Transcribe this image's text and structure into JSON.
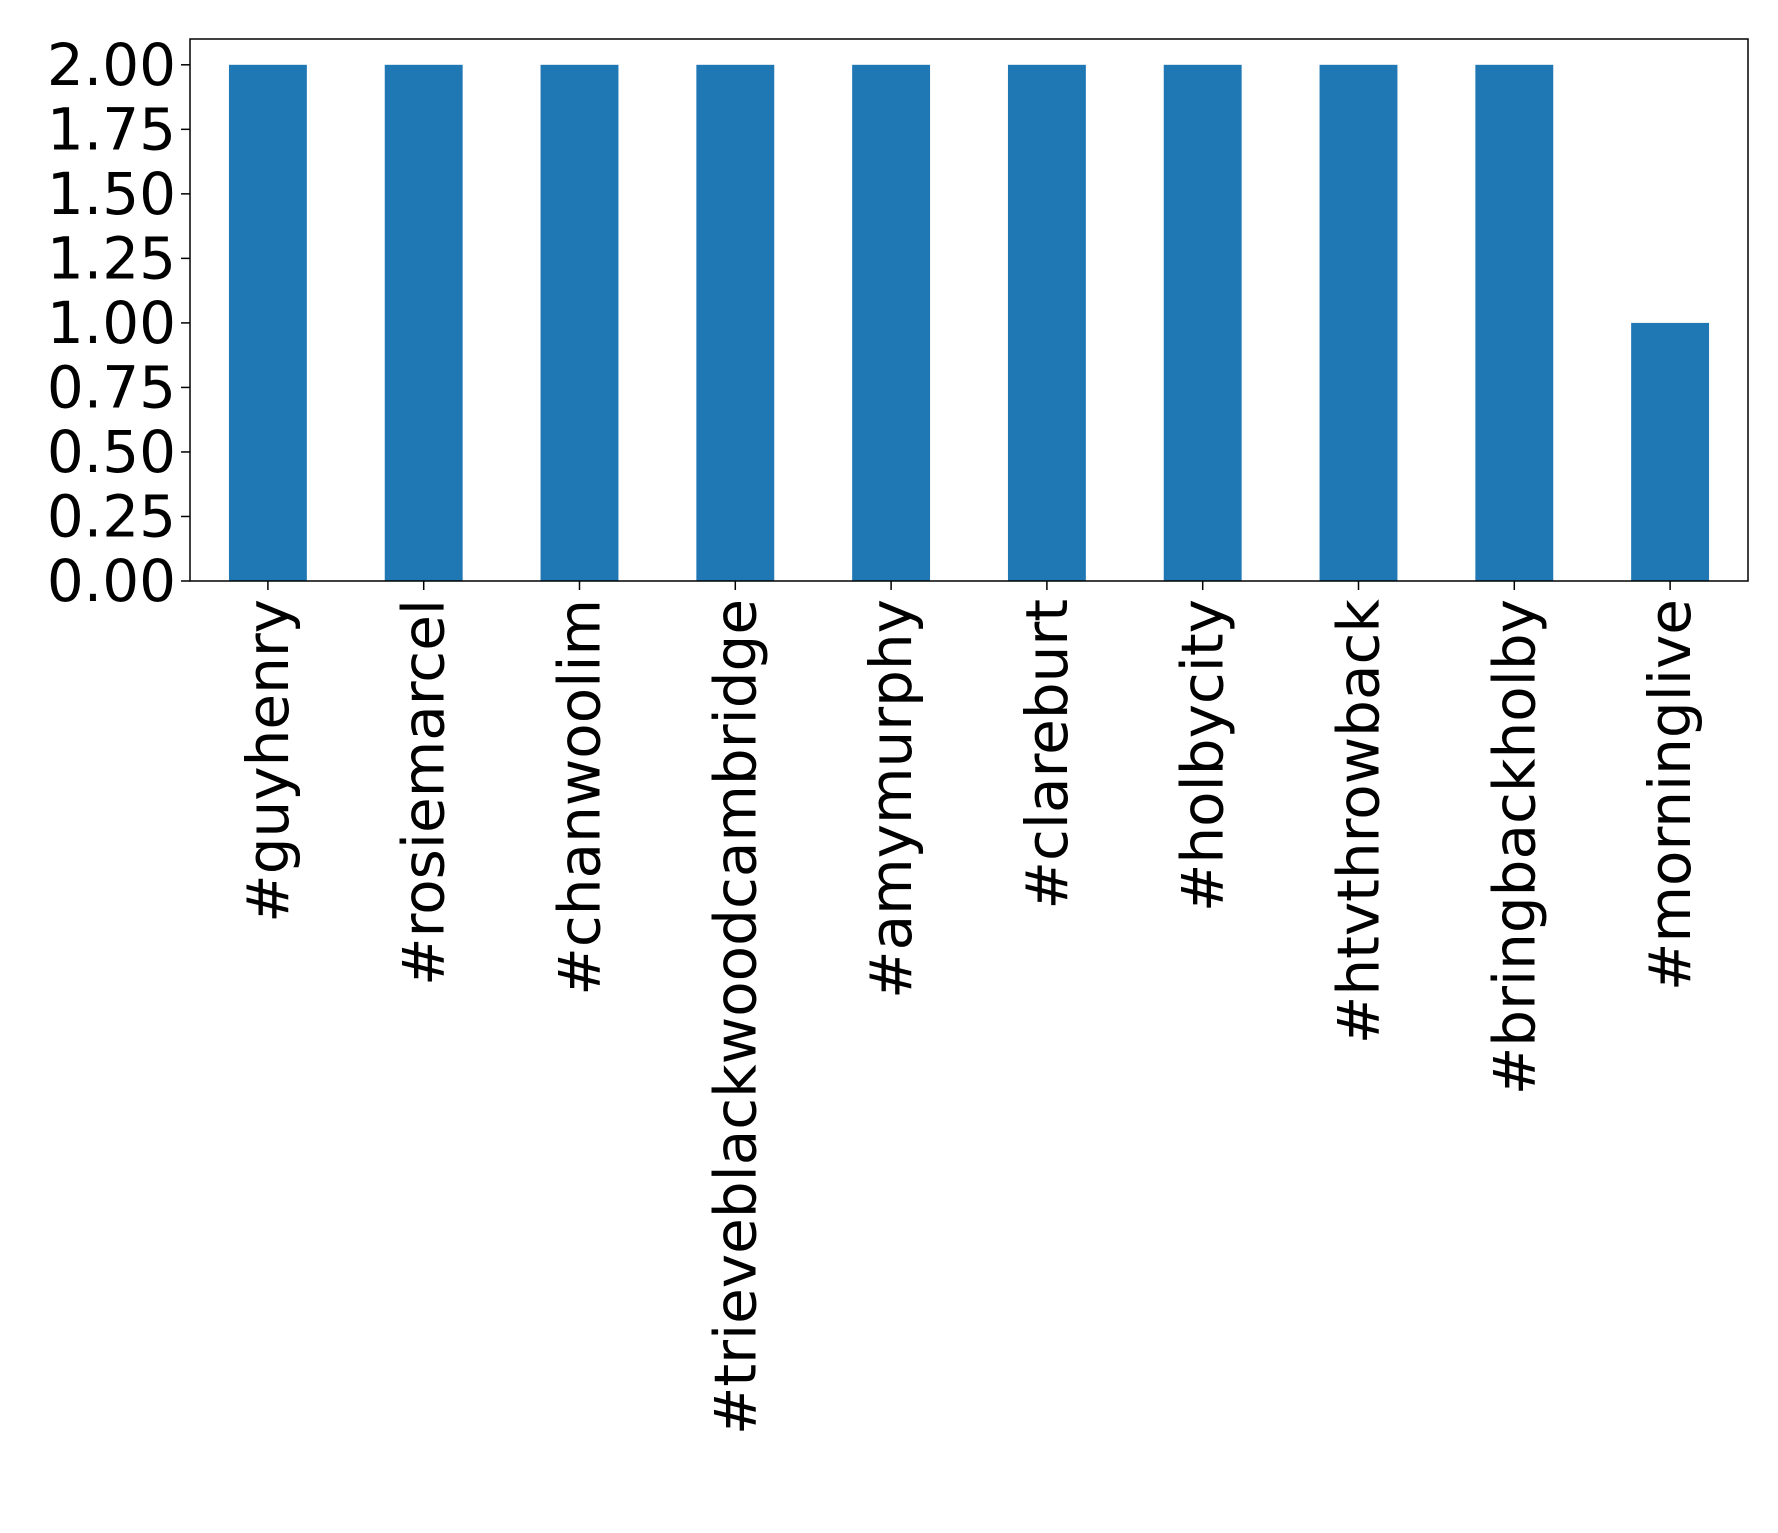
{
  "chart_data": {
    "type": "bar",
    "title": "",
    "xlabel": "",
    "ylabel": "",
    "categories": [
      "#guyhenry",
      "#rosiemarcel",
      "#chanwoolim",
      "#trieveblackwoodcambridge",
      "#amymurphy",
      "#clareburt",
      "#holbycity",
      "#htvthrowback",
      "#bringbackholby",
      "#morninglive"
    ],
    "values": [
      2,
      2,
      2,
      2,
      2,
      2,
      2,
      2,
      2,
      1
    ],
    "ylim": [
      0,
      2.1
    ],
    "yticks": [
      "0.00",
      "0.25",
      "0.50",
      "0.75",
      "1.00",
      "1.25",
      "1.50",
      "1.75",
      "2.00"
    ],
    "ytick_values": [
      0,
      0.25,
      0.5,
      0.75,
      1.0,
      1.25,
      1.5,
      1.75,
      2.0
    ],
    "grid": false,
    "legend": "none",
    "bar_color": "#1f77b4"
  }
}
